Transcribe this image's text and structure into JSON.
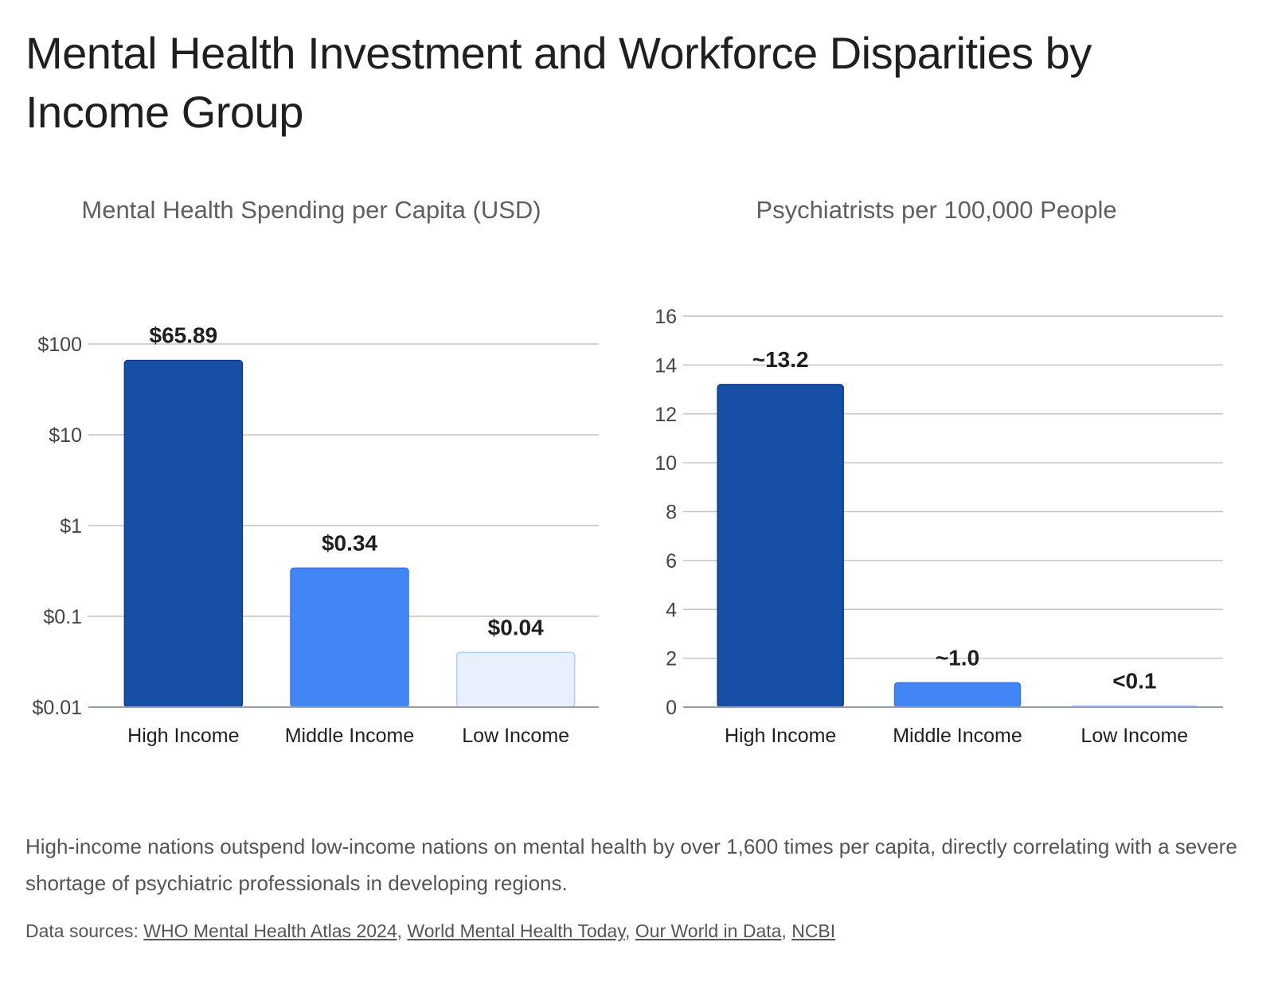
{
  "title": "Mental Health Investment and Workforce Disparities by Income Group",
  "chart_data": [
    {
      "type": "bar",
      "title": "Mental Health Spending per Capita (USD)",
      "xlabel": "",
      "ylabel": "",
      "scale": "log",
      "categories": [
        "High Income",
        "Middle Income",
        "Low Income"
      ],
      "values": [
        65.89,
        0.34,
        0.04
      ],
      "data_labels": [
        "$65.89",
        "$0.34",
        "$0.04"
      ],
      "ylim": [
        0.01,
        100
      ],
      "yticks": [
        0.01,
        0.1,
        1,
        10,
        100
      ],
      "ytick_labels": [
        "$0.01",
        "$0.1",
        "$1",
        "$10",
        "$100"
      ],
      "colors": [
        "#174ea6",
        "#4285f4",
        "#e8f0fe"
      ],
      "grid": true
    },
    {
      "type": "bar",
      "title": "Psychiatrists per 100,000 People",
      "xlabel": "",
      "ylabel": "",
      "scale": "linear",
      "categories": [
        "High Income",
        "Middle Income",
        "Low Income"
      ],
      "values": [
        13.2,
        1.0,
        0.05
      ],
      "data_labels": [
        "~13.2",
        "~1.0",
        "<0.1"
      ],
      "ylim": [
        0,
        16
      ],
      "yticks": [
        0,
        2,
        4,
        6,
        8,
        10,
        12,
        14,
        16
      ],
      "ytick_labels": [
        "0",
        "2",
        "4",
        "6",
        "8",
        "10",
        "12",
        "14",
        "16"
      ],
      "colors": [
        "#174ea6",
        "#4285f4",
        "#e8f0fe"
      ],
      "grid": true
    }
  ],
  "caption": "High-income nations outspend low-income nations on mental health by over 1,600 times per capita, directly correlating with a severe shortage of psychiatric professionals in developing regions.",
  "sources": {
    "prefix": "Data sources: ",
    "links": [
      "WHO Mental Health Atlas 2024",
      "World Mental Health Today",
      "Our World in Data",
      "NCBI"
    ],
    "separator": ", "
  }
}
